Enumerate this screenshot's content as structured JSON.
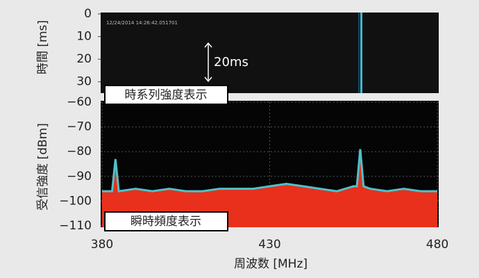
{
  "chart_data": [
    {
      "type": "waterfall",
      "timestamp": "12/24/2014 14:26:42.051701",
      "ylabel": "時間 [ms]",
      "ylim": [
        0,
        35
      ],
      "yticks": [
        0,
        10,
        20,
        30
      ],
      "annotation": "20ms",
      "panel_label": "時系列強度表示"
    },
    {
      "type": "line",
      "panel_label": "瞬時頻度表示",
      "xlabel": "周波数 [MHz]",
      "ylabel": "受信強度 [dBm]",
      "xlim": [
        380,
        480
      ],
      "xticks": [
        380,
        430,
        480
      ],
      "ylim": [
        -110,
        -60
      ],
      "yticks": [
        {
          "value": -60,
          "label": "−60"
        },
        {
          "value": -70,
          "label": "−70"
        },
        {
          "value": -80,
          "label": "−80"
        },
        {
          "value": -90,
          "label": "−90"
        },
        {
          "value": -100,
          "label": "−100"
        },
        {
          "value": -110,
          "label": "−110"
        }
      ],
      "grid": true,
      "x": [
        380,
        383,
        384,
        385,
        390,
        395,
        400,
        405,
        410,
        415,
        420,
        425,
        430,
        435,
        440,
        445,
        450,
        455,
        456,
        457,
        458,
        460,
        465,
        470,
        475,
        480
      ],
      "series": [
        {
          "color": "#e8301c",
          "line_color": "#4fc1c9",
          "values": [
            -96,
            -96,
            -83,
            -96,
            -95,
            -96,
            -95,
            -96,
            -96,
            -95,
            -95,
            -95,
            -94,
            -93,
            -94,
            -95,
            -96,
            -94,
            -94,
            -79,
            -94,
            -95,
            -96,
            -95,
            -96,
            -96
          ]
        }
      ]
    }
  ]
}
